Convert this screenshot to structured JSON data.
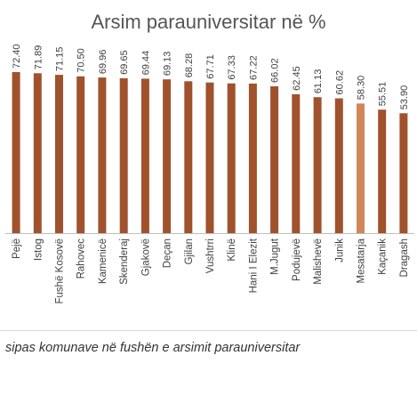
{
  "colors": {
    "bar": "#a0522d",
    "bar_highlight": "#d2875a",
    "axis": "#bfbfbf",
    "text": "#404040"
  },
  "caption": "sipas komunave në fushën e arsimit parauniversitar",
  "chart_data": {
    "type": "bar",
    "title": "Arsim parauniversitar në %",
    "categories": [
      "Pejë",
      "Istog",
      "Fushë Kosovë",
      "Rahovec",
      "Kamenicë",
      "Skenderaj",
      "Gjakovë",
      "Deçan",
      "Gjilan",
      "Vushtrri",
      "Klinë",
      "Hani I Elezit",
      "M.Jugut",
      "Podujevë",
      "Malishevë",
      "Junik",
      "Mesatarja",
      "Kaçanik",
      "Dragash"
    ],
    "values": [
      72.4,
      71.89,
      71.15,
      70.5,
      69.96,
      69.65,
      69.44,
      69.13,
      68.28,
      67.71,
      67.33,
      67.22,
      66.02,
      62.45,
      61.13,
      60.62,
      58.3,
      55.51,
      53.9
    ],
    "value_labels": [
      "72.40",
      "71.89",
      "71.15",
      "70.50",
      "69.96",
      "69.65",
      "69.44",
      "69.13",
      "68.28",
      "67.71",
      "67.33",
      "67.22",
      "66.02",
      "62.45",
      "61.13",
      "60.62",
      "58.30",
      "55.51",
      "53.90"
    ],
    "highlight": "Mesatarja",
    "ylim": [
      0,
      80
    ],
    "grid": false,
    "legend": "none"
  }
}
